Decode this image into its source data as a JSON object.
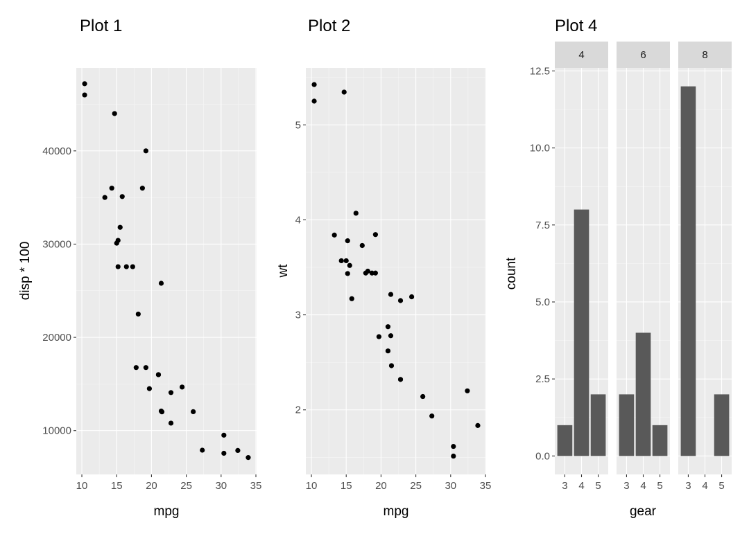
{
  "colors": {
    "panel": "#ebebeb",
    "grid": "#ffffff",
    "point": "#000000",
    "bar": "#595959",
    "strip": "#d9d9d9"
  },
  "chart_data": [
    {
      "type": "scatter",
      "title": "Plot 1",
      "xlabel": "mpg",
      "ylabel": "disp * 100",
      "xlim": [
        9.2,
        35.1
      ],
      "ylim": [
        5300,
        48900
      ],
      "x_ticks": [
        10,
        15,
        20,
        25,
        30,
        35
      ],
      "x_tick_labels": [
        "10",
        "15",
        "20",
        "25",
        "30",
        "35"
      ],
      "y_ticks": [
        10000,
        20000,
        30000,
        40000
      ],
      "y_tick_labels": [
        "10000",
        "20000",
        "30000",
        "40000"
      ],
      "points": [
        [
          21.0,
          16000
        ],
        [
          21.0,
          16000
        ],
        [
          22.8,
          10800
        ],
        [
          21.4,
          25800
        ],
        [
          18.7,
          36000
        ],
        [
          18.1,
          22500
        ],
        [
          14.3,
          36000
        ],
        [
          24.4,
          14670
        ],
        [
          22.8,
          14080
        ],
        [
          19.2,
          16760
        ],
        [
          17.8,
          16760
        ],
        [
          16.4,
          27580
        ],
        [
          17.3,
          27580
        ],
        [
          15.2,
          27580
        ],
        [
          10.4,
          47200
        ],
        [
          10.4,
          46000
        ],
        [
          14.7,
          44000
        ],
        [
          32.4,
          7870
        ],
        [
          30.4,
          7570
        ],
        [
          33.9,
          7110
        ],
        [
          21.5,
          12010
        ],
        [
          15.5,
          31800
        ],
        [
          15.2,
          30400
        ],
        [
          13.3,
          35000
        ],
        [
          19.2,
          40000
        ],
        [
          27.3,
          7900
        ],
        [
          26.0,
          12030
        ],
        [
          30.4,
          9510
        ],
        [
          15.8,
          35100
        ],
        [
          19.7,
          14500
        ],
        [
          15.0,
          30100
        ],
        [
          21.4,
          12100
        ]
      ]
    },
    {
      "type": "scatter",
      "title": "Plot 2",
      "xlabel": "mpg",
      "ylabel": "wt",
      "xlim": [
        9.2,
        35.1
      ],
      "ylim": [
        1.32,
        5.6
      ],
      "x_ticks": [
        10,
        15,
        20,
        25,
        30,
        35
      ],
      "x_tick_labels": [
        "10",
        "15",
        "20",
        "25",
        "30",
        "35"
      ],
      "y_ticks": [
        2,
        3,
        4,
        5
      ],
      "y_tick_labels": [
        "2",
        "3",
        "4",
        "5"
      ],
      "points": [
        [
          21.0,
          2.62
        ],
        [
          21.0,
          2.875
        ],
        [
          22.8,
          2.32
        ],
        [
          21.4,
          3.215
        ],
        [
          18.7,
          3.44
        ],
        [
          18.1,
          3.46
        ],
        [
          14.3,
          3.57
        ],
        [
          24.4,
          3.19
        ],
        [
          22.8,
          3.15
        ],
        [
          19.2,
          3.44
        ],
        [
          17.8,
          3.44
        ],
        [
          16.4,
          4.07
        ],
        [
          17.3,
          3.73
        ],
        [
          15.2,
          3.78
        ],
        [
          10.4,
          5.25
        ],
        [
          10.4,
          5.424
        ],
        [
          14.7,
          5.345
        ],
        [
          32.4,
          2.2
        ],
        [
          30.4,
          1.615
        ],
        [
          33.9,
          1.835
        ],
        [
          21.5,
          2.465
        ],
        [
          15.5,
          3.52
        ],
        [
          15.2,
          3.435
        ],
        [
          13.3,
          3.84
        ],
        [
          19.2,
          3.845
        ],
        [
          27.3,
          1.935
        ],
        [
          26.0,
          2.14
        ],
        [
          30.4,
          1.513
        ],
        [
          15.8,
          3.17
        ],
        [
          19.7,
          2.77
        ],
        [
          15.0,
          3.57
        ],
        [
          21.4,
          2.78
        ]
      ]
    },
    {
      "type": "bar",
      "title": "Plot 4",
      "xlabel": "gear",
      "ylabel": "count",
      "categories": [
        "3",
        "4",
        "5"
      ],
      "ylim": [
        -0.6,
        12.6
      ],
      "y_ticks": [
        0,
        2.5,
        5,
        7.5,
        10,
        12.5
      ],
      "y_tick_labels": [
        "0.0",
        "2.5",
        "5.0",
        "7.5",
        "10.0",
        "12.5"
      ],
      "facets": [
        {
          "label": "4",
          "values": [
            1,
            8,
            2
          ]
        },
        {
          "label": "6",
          "values": [
            2,
            4,
            1
          ]
        },
        {
          "label": "8",
          "values": [
            12,
            0,
            2
          ]
        }
      ]
    }
  ]
}
